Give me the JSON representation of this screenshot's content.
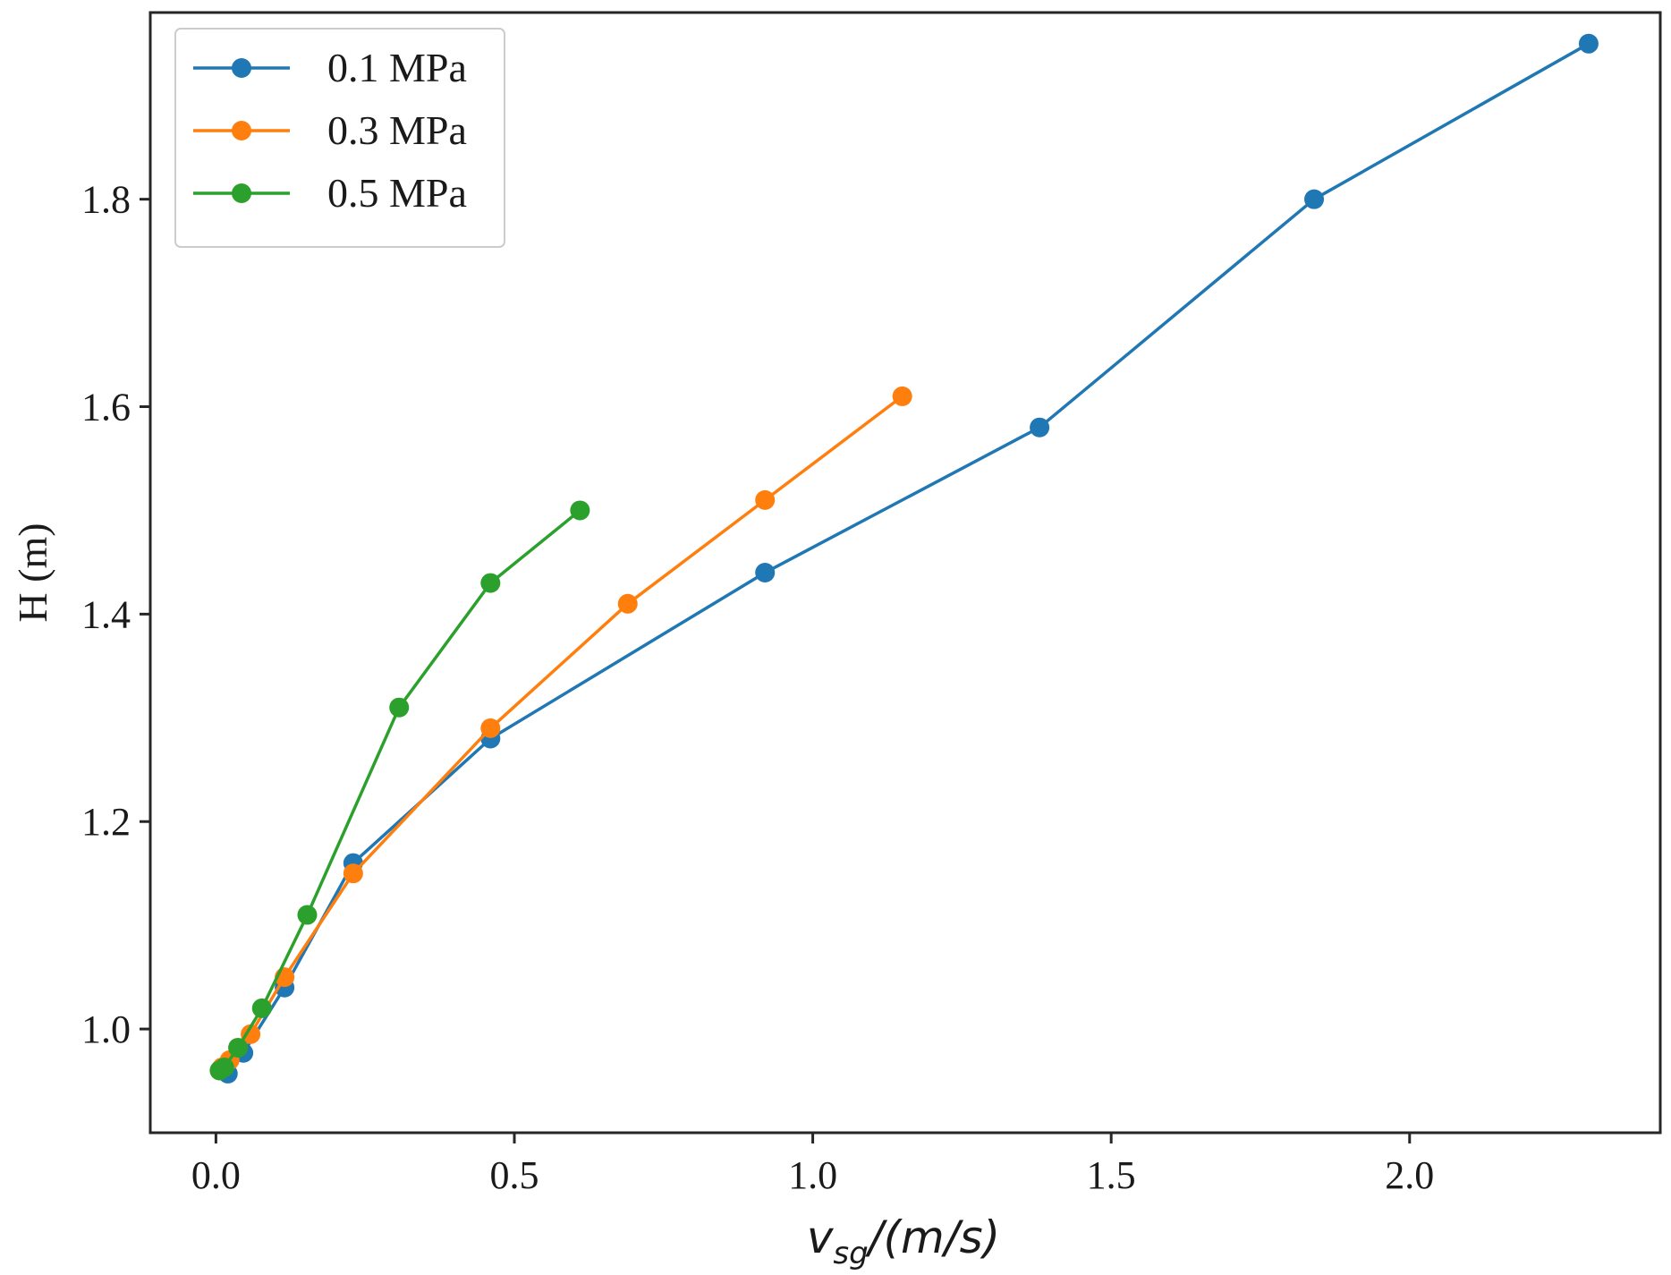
{
  "chart_data": {
    "type": "line",
    "title": "",
    "xlabel": "v_sg/(m/s)",
    "xlabel_parts": {
      "base": "v",
      "sub": "sg",
      "rest": "/(m/s)"
    },
    "ylabel": "H (m)",
    "xlim": [
      -0.11,
      2.42
    ],
    "ylim": [
      0.9,
      1.98
    ],
    "xticks": [
      0.0,
      0.5,
      1.0,
      1.5,
      2.0
    ],
    "xtick_labels": [
      "0.0",
      "0.5",
      "1.0",
      "1.5",
      "2.0"
    ],
    "yticks": [
      1.0,
      1.2,
      1.4,
      1.6,
      1.8
    ],
    "ytick_labels": [
      "1.0",
      "1.2",
      "1.4",
      "1.6",
      "1.8"
    ],
    "grid": false,
    "legend_position": "top-left",
    "series": [
      {
        "name": "0.1 MPa",
        "color": "#1f77b4",
        "x": [
          0.02,
          0.046,
          0.115,
          0.23,
          0.46,
          0.92,
          1.38,
          1.84,
          2.3
        ],
        "y": [
          0.957,
          0.977,
          1.04,
          1.16,
          1.28,
          1.44,
          1.58,
          1.8,
          1.95
        ]
      },
      {
        "name": "0.3 MPa",
        "color": "#ff7f0e",
        "x": [
          0.01,
          0.023,
          0.058,
          0.115,
          0.23,
          0.46,
          0.69,
          0.92,
          1.15
        ],
        "y": [
          0.963,
          0.97,
          0.995,
          1.05,
          1.15,
          1.29,
          1.41,
          1.51,
          1.61
        ]
      },
      {
        "name": "0.5 MPa",
        "color": "#2ca02c",
        "x": [
          0.006,
          0.014,
          0.037,
          0.077,
          0.153,
          0.307,
          0.46,
          0.61
        ],
        "y": [
          0.96,
          0.963,
          0.982,
          1.02,
          1.11,
          1.31,
          1.43,
          1.5
        ]
      }
    ]
  }
}
